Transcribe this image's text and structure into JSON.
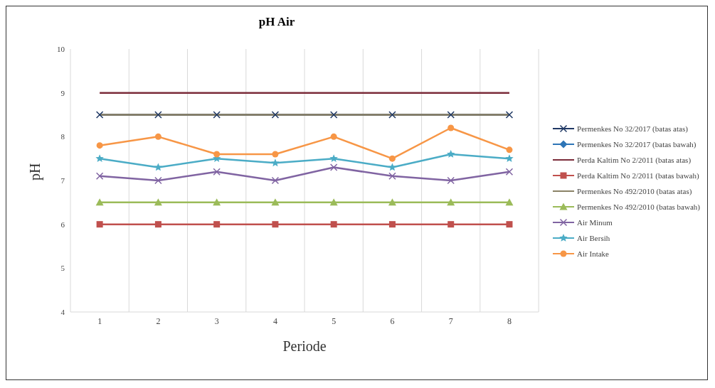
{
  "chart_data": {
    "type": "line",
    "title": "pH Air",
    "xlabel": "Periode",
    "ylabel": "pH",
    "categories": [
      "1",
      "2",
      "3",
      "4",
      "5",
      "6",
      "7",
      "8"
    ],
    "series": [
      {
        "name": "Permenkes No 32/2017 (batas atas)",
        "color": "#1f3864",
        "marker": "cross",
        "values": [
          8.5,
          8.5,
          8.5,
          8.5,
          8.5,
          8.5,
          8.5,
          8.5
        ]
      },
      {
        "name": "Permenkes No 32/2017 (batas bawah)",
        "color": "#2e75b6",
        "marker": "diamond",
        "values": [
          null,
          null,
          null,
          null,
          null,
          null,
          null,
          null
        ]
      },
      {
        "name": "Perda Kaltim No 2/2011 (batas atas)",
        "color": "#7b2c3a",
        "marker": "none",
        "values": [
          9,
          9,
          9,
          9,
          9,
          9,
          9,
          9
        ]
      },
      {
        "name": "Perda Kaltim No 2/2011 (batas bawah)",
        "color": "#c0504d",
        "marker": "square",
        "values": [
          6,
          6,
          6,
          6,
          6,
          6,
          6,
          6
        ]
      },
      {
        "name": "Permenkes No 492/2010 (batas atas)",
        "color": "#8a8266",
        "marker": "none",
        "values": [
          8.5,
          8.5,
          8.5,
          8.5,
          8.5,
          8.5,
          8.5,
          8.5
        ]
      },
      {
        "name": "Permenkes No 492/2010 (batas bawah)",
        "color": "#9bbb59",
        "marker": "triangle",
        "values": [
          6.5,
          6.5,
          6.5,
          6.5,
          6.5,
          6.5,
          6.5,
          6.5
        ]
      },
      {
        "name": "Air Minum",
        "color": "#8064a2",
        "marker": "cross",
        "values": [
          7.1,
          7.0,
          7.2,
          7.0,
          7.3,
          7.1,
          7.0,
          7.2
        ]
      },
      {
        "name": "Air Bersih",
        "color": "#4bacc6",
        "marker": "star",
        "values": [
          7.5,
          7.3,
          7.5,
          7.4,
          7.5,
          7.3,
          7.6,
          7.5
        ]
      },
      {
        "name": "Air Intake",
        "color": "#f79646",
        "marker": "circle",
        "values": [
          7.8,
          8.0,
          7.6,
          7.6,
          8.0,
          7.5,
          8.2,
          7.7
        ]
      }
    ],
    "ylim": [
      4,
      10
    ],
    "yticks": [
      4,
      5,
      6,
      7,
      8,
      9,
      10
    ],
    "grid": "x",
    "legend": "right"
  }
}
